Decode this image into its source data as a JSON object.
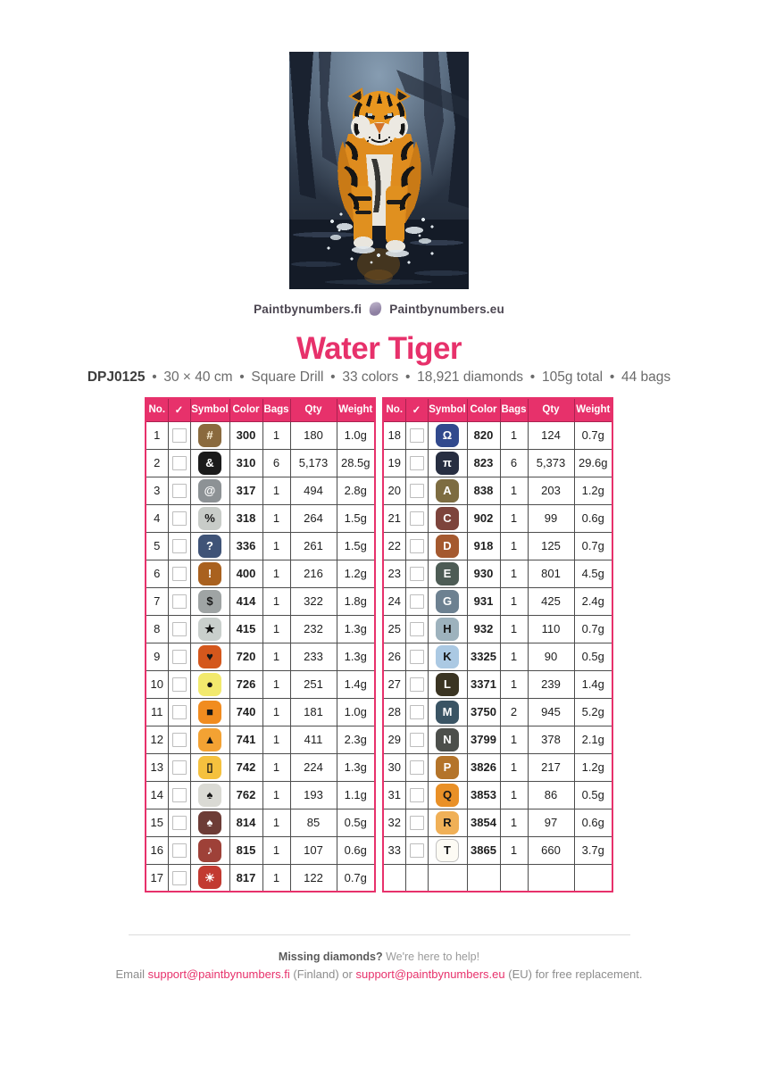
{
  "brands": {
    "fi": "Paintbynumbers.fi",
    "eu": "Paintbynumbers.eu"
  },
  "title": "Water Tiger",
  "specs": {
    "code": "DPJ0125",
    "items": [
      "30 × 40 cm",
      "Square Drill",
      "33 colors",
      "18,921 diamonds",
      "105g total",
      "44 bags"
    ]
  },
  "colors": {
    "accent": "#e7316b"
  },
  "artwork": {
    "name": "water-tiger-diamond-painting-preview"
  },
  "tables": {
    "headers": [
      "No.",
      "✓",
      "Symbol",
      "Color",
      "Bags",
      "Qty",
      "Weight"
    ],
    "header_keys": [
      "no",
      "check",
      "symbol",
      "color",
      "bags",
      "qty",
      "weight"
    ],
    "left": {
      "rows": [
        {
          "no": "1",
          "symbol": "#",
          "chip_bg": "#8a6a3e",
          "chip_fg": "#fdf3d8",
          "color": "300",
          "bags": "1",
          "qty": "180",
          "weight": "1.0g"
        },
        {
          "no": "2",
          "symbol": "&",
          "chip_bg": "#1b1b1b",
          "chip_fg": "#ffffff",
          "color": "310",
          "bags": "6",
          "qty": "5,173",
          "weight": "28.5g"
        },
        {
          "no": "3",
          "symbol": "@",
          "chip_bg": "#8d9295",
          "chip_fg": "#ffffff",
          "color": "317",
          "bags": "1",
          "qty": "494",
          "weight": "2.8g"
        },
        {
          "no": "4",
          "symbol": "%",
          "chip_bg": "#c8ccc8",
          "chip_fg": "#1a1a1a",
          "color": "318",
          "bags": "1",
          "qty": "264",
          "weight": "1.5g"
        },
        {
          "no": "5",
          "symbol": "?",
          "chip_bg": "#3f5377",
          "chip_fg": "#ffffff",
          "color": "336",
          "bags": "1",
          "qty": "261",
          "weight": "1.5g"
        },
        {
          "no": "6",
          "symbol": "!",
          "chip_bg": "#a9611f",
          "chip_fg": "#ffffff",
          "color": "400",
          "bags": "1",
          "qty": "216",
          "weight": "1.2g"
        },
        {
          "no": "7",
          "symbol": "$",
          "chip_bg": "#9fa4a4",
          "chip_fg": "#1a1a1a",
          "color": "414",
          "bags": "1",
          "qty": "322",
          "weight": "1.8g"
        },
        {
          "no": "8",
          "symbol": "★",
          "chip_bg": "#c9cfcc",
          "chip_fg": "#111111",
          "color": "415",
          "bags": "1",
          "qty": "232",
          "weight": "1.3g"
        },
        {
          "no": "9",
          "symbol": "♥",
          "chip_bg": "#d4571c",
          "chip_fg": "#161616",
          "color": "720",
          "bags": "1",
          "qty": "233",
          "weight": "1.3g"
        },
        {
          "no": "10",
          "symbol": "●",
          "chip_bg": "#f2e96d",
          "chip_fg": "#161616",
          "color": "726",
          "bags": "1",
          "qty": "251",
          "weight": "1.4g"
        },
        {
          "no": "11",
          "symbol": "■",
          "chip_bg": "#f18c1f",
          "chip_fg": "#161616",
          "color": "740",
          "bags": "1",
          "qty": "181",
          "weight": "1.0g"
        },
        {
          "no": "12",
          "symbol": "▲",
          "chip_bg": "#f3a233",
          "chip_fg": "#161616",
          "color": "741",
          "bags": "1",
          "qty": "411",
          "weight": "2.3g"
        },
        {
          "no": "13",
          "symbol": "▯",
          "chip_bg": "#f5c13e",
          "chip_fg": "#161616",
          "color": "742",
          "bags": "1",
          "qty": "224",
          "weight": "1.3g"
        },
        {
          "no": "14",
          "symbol": "♠",
          "chip_bg": "#dadad4",
          "chip_fg": "#161616",
          "color": "762",
          "bags": "1",
          "qty": "193",
          "weight": "1.1g"
        },
        {
          "no": "15",
          "symbol": "♠",
          "chip_bg": "#6d3c36",
          "chip_fg": "#ffffff",
          "color": "814",
          "bags": "1",
          "qty": "85",
          "weight": "0.5g"
        },
        {
          "no": "16",
          "symbol": "♪",
          "chip_bg": "#9e4138",
          "chip_fg": "#ffffff",
          "color": "815",
          "bags": "1",
          "qty": "107",
          "weight": "0.6g"
        },
        {
          "no": "17",
          "symbol": "☀",
          "chip_bg": "#c23a31",
          "chip_fg": "#ffffff",
          "color": "817",
          "bags": "1",
          "qty": "122",
          "weight": "0.7g"
        }
      ]
    },
    "right": {
      "rows": [
        {
          "no": "18",
          "symbol": "Ω",
          "chip_bg": "#31498d",
          "chip_fg": "#ffffff",
          "color": "820",
          "bags": "1",
          "qty": "124",
          "weight": "0.7g"
        },
        {
          "no": "19",
          "symbol": "π",
          "chip_bg": "#272e41",
          "chip_fg": "#ffffff",
          "color": "823",
          "bags": "6",
          "qty": "5,373",
          "weight": "29.6g"
        },
        {
          "no": "20",
          "symbol": "A",
          "chip_bg": "#7d6c41",
          "chip_fg": "#ffffff",
          "color": "838",
          "bags": "1",
          "qty": "203",
          "weight": "1.2g"
        },
        {
          "no": "21",
          "symbol": "C",
          "chip_bg": "#7d443c",
          "chip_fg": "#ffffff",
          "color": "902",
          "bags": "1",
          "qty": "99",
          "weight": "0.6g"
        },
        {
          "no": "22",
          "symbol": "D",
          "chip_bg": "#a4592f",
          "chip_fg": "#ffffff",
          "color": "918",
          "bags": "1",
          "qty": "125",
          "weight": "0.7g"
        },
        {
          "no": "23",
          "symbol": "E",
          "chip_bg": "#4d5c55",
          "chip_fg": "#ffffff",
          "color": "930",
          "bags": "1",
          "qty": "801",
          "weight": "4.5g"
        },
        {
          "no": "24",
          "symbol": "G",
          "chip_bg": "#6d8191",
          "chip_fg": "#ffffff",
          "color": "931",
          "bags": "1",
          "qty": "425",
          "weight": "2.4g"
        },
        {
          "no": "25",
          "symbol": "H",
          "chip_bg": "#9db2bd",
          "chip_fg": "#161616",
          "color": "932",
          "bags": "1",
          "qty": "110",
          "weight": "0.7g"
        },
        {
          "no": "26",
          "symbol": "K",
          "chip_bg": "#abc9e3",
          "chip_fg": "#161616",
          "color": "3325",
          "bags": "1",
          "qty": "90",
          "weight": "0.5g"
        },
        {
          "no": "27",
          "symbol": "L",
          "chip_bg": "#3a3422",
          "chip_fg": "#ffffff",
          "color": "3371",
          "bags": "1",
          "qty": "239",
          "weight": "1.4g"
        },
        {
          "no": "28",
          "symbol": "M",
          "chip_bg": "#3a5464",
          "chip_fg": "#ffffff",
          "color": "3750",
          "bags": "2",
          "qty": "945",
          "weight": "5.2g"
        },
        {
          "no": "29",
          "symbol": "N",
          "chip_bg": "#4c4f4b",
          "chip_fg": "#ffffff",
          "color": "3799",
          "bags": "1",
          "qty": "378",
          "weight": "2.1g"
        },
        {
          "no": "30",
          "symbol": "P",
          "chip_bg": "#b4742a",
          "chip_fg": "#ffffff",
          "color": "3826",
          "bags": "1",
          "qty": "217",
          "weight": "1.2g"
        },
        {
          "no": "31",
          "symbol": "Q",
          "chip_bg": "#e99027",
          "chip_fg": "#161616",
          "color": "3853",
          "bags": "1",
          "qty": "86",
          "weight": "0.5g"
        },
        {
          "no": "32",
          "symbol": "R",
          "chip_bg": "#f0b057",
          "chip_fg": "#161616",
          "color": "3854",
          "bags": "1",
          "qty": "97",
          "weight": "0.6g"
        },
        {
          "no": "33",
          "symbol": "T",
          "chip_bg": "#fdfbf4",
          "chip_fg": "#161616",
          "chip_border": "#c2c2c2",
          "color": "3865",
          "bags": "1",
          "qty": "660",
          "weight": "3.7g"
        },
        {
          "no": "",
          "symbol": "",
          "color": "",
          "bags": "",
          "qty": "",
          "weight": "",
          "empty": true
        }
      ]
    }
  },
  "footer": {
    "line1_strong": "Missing diamonds?",
    "line1_rest": " We're here to help!",
    "email_prefix": "Email ",
    "email_fi": "support@paintbynumbers.fi",
    "email_mid": " (Finland) or ",
    "email_eu": "support@paintbynumbers.eu",
    "email_suffix": " (EU) for free replacement."
  }
}
